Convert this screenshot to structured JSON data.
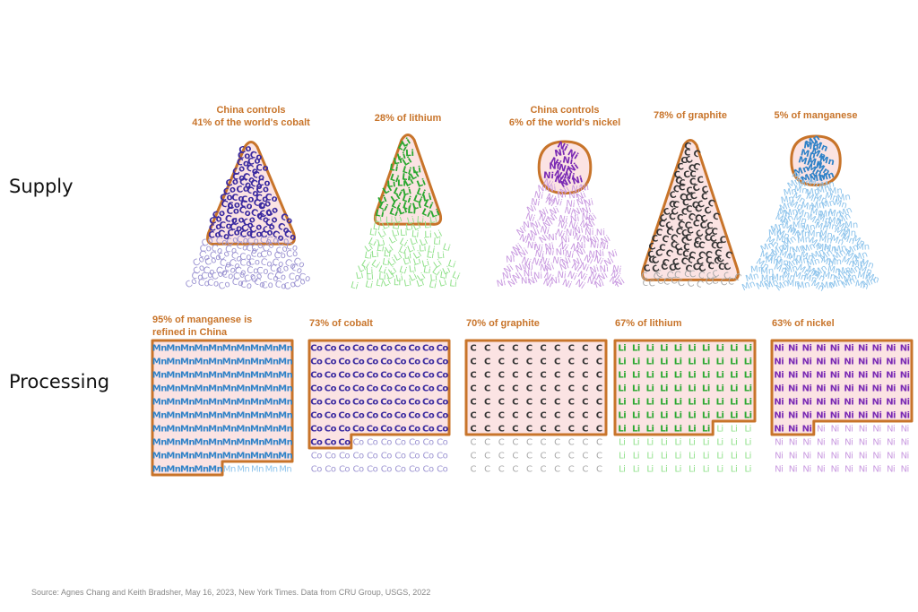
{
  "row_labels": {
    "supply": "Supply",
    "processing": "Processing"
  },
  "source": "Source: Agnes Chang and Keith Bradsher, May 16, 2023, New York Times. Data from CRU Group, USGS, 2022",
  "colors": {
    "annotation": "#c8742a",
    "china_fill": "#fbe3e3",
    "china_outline": "#c8742a",
    "cobalt": "#3a2aa0",
    "cobalt_light": "#9c94d2",
    "lithium": "#2aa830",
    "lithium_light": "#8ee088",
    "nickel": "#7a2ab4",
    "nickel_light": "#c99ae0",
    "graphite": "#333333",
    "graphite_light": "#a8a8a8",
    "manganese": "#2f82c8",
    "manganese_light": "#8ec4ec"
  },
  "chart_data": [
    {
      "type": "pictogram",
      "name": "Supply",
      "items": [
        {
          "mineral": "cobalt",
          "symbol": "Co",
          "china_share_pct": 41,
          "label_lines": [
            "China controls",
            "41% of the world's cobalt"
          ]
        },
        {
          "mineral": "lithium",
          "symbol": "Li",
          "china_share_pct": 28,
          "label_lines": [
            "28% of lithium"
          ]
        },
        {
          "mineral": "nickel",
          "symbol": "Ni",
          "china_share_pct": 6,
          "label_lines": [
            "China controls",
            "6% of the world's nickel"
          ]
        },
        {
          "mineral": "graphite",
          "symbol": "C",
          "china_share_pct": 78,
          "label_lines": [
            "78% of graphite"
          ]
        },
        {
          "mineral": "manganese",
          "symbol": "Mn",
          "china_share_pct": 5,
          "label_lines": [
            "5% of manganese"
          ]
        }
      ]
    },
    {
      "type": "pictogram",
      "name": "Processing",
      "items": [
        {
          "mineral": "manganese",
          "symbol": "Mn",
          "china_share_pct": 95,
          "label_lines": [
            "95% of manganese is",
            "refined in China"
          ]
        },
        {
          "mineral": "cobalt",
          "symbol": "Co",
          "china_share_pct": 73,
          "label_lines": [
            "73% of cobalt"
          ]
        },
        {
          "mineral": "graphite",
          "symbol": "C",
          "china_share_pct": 70,
          "label_lines": [
            "70% of graphite"
          ]
        },
        {
          "mineral": "lithium",
          "symbol": "Li",
          "china_share_pct": 67,
          "label_lines": [
            "67% of lithium"
          ]
        },
        {
          "mineral": "nickel",
          "symbol": "Ni",
          "china_share_pct": 63,
          "label_lines": [
            "63% of nickel"
          ]
        }
      ]
    }
  ]
}
